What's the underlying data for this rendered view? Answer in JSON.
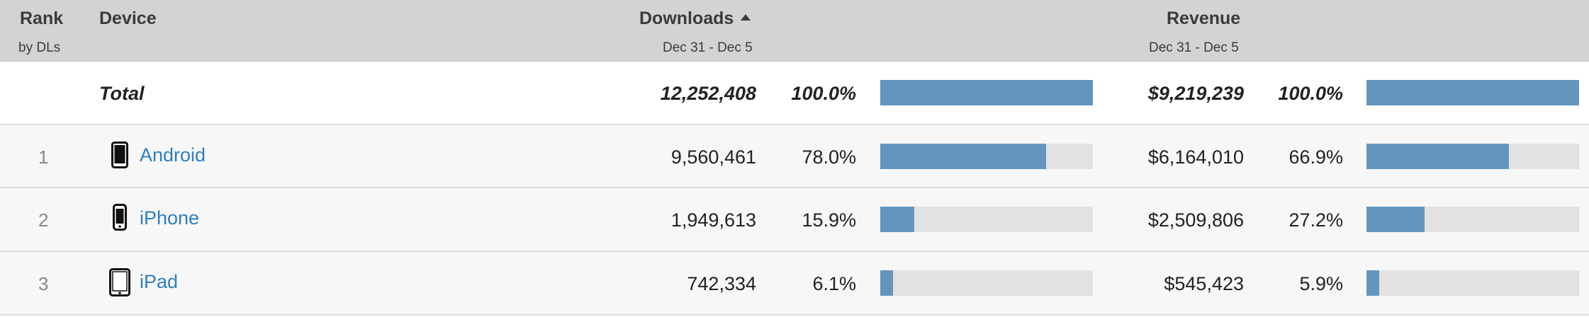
{
  "header": {
    "rank_label": "Rank",
    "rank_sub": "by DLs",
    "device_label": "Device",
    "downloads_label": "Downloads",
    "downloads_range": "Dec 31 - Dec 5",
    "revenue_label": "Revenue",
    "revenue_range": "Dec 31 - Dec 5",
    "sort_icon": "sort-ascending-icon"
  },
  "total": {
    "label": "Total",
    "downloads": "12,252,408",
    "downloads_pct": "100.0%",
    "downloads_share": 1.0,
    "revenue": "$9,219,239",
    "revenue_pct": "100.0%",
    "revenue_share": 1.0
  },
  "rows": [
    {
      "rank": "1",
      "device": "Android",
      "icon": "android-phone-icon",
      "downloads": "9,560,461",
      "downloads_pct": "78.0%",
      "downloads_share": 0.78,
      "revenue": "$6,164,010",
      "revenue_pct": "66.9%",
      "revenue_share": 0.669
    },
    {
      "rank": "2",
      "device": "iPhone",
      "icon": "iphone-icon",
      "downloads": "1,949,613",
      "downloads_pct": "15.9%",
      "downloads_share": 0.159,
      "revenue": "$2,509,806",
      "revenue_pct": "27.2%",
      "revenue_share": 0.272
    },
    {
      "rank": "3",
      "device": "iPad",
      "icon": "ipad-icon",
      "downloads": "742,334",
      "downloads_pct": "6.1%",
      "downloads_share": 0.061,
      "revenue": "$545,423",
      "revenue_pct": "5.9%",
      "revenue_share": 0.059
    }
  ],
  "colors": {
    "header_bg": "#d3d3d3",
    "bar_fill": "#6496bd",
    "bar_track": "#e2e2e2",
    "link": "#2e7fc0"
  }
}
